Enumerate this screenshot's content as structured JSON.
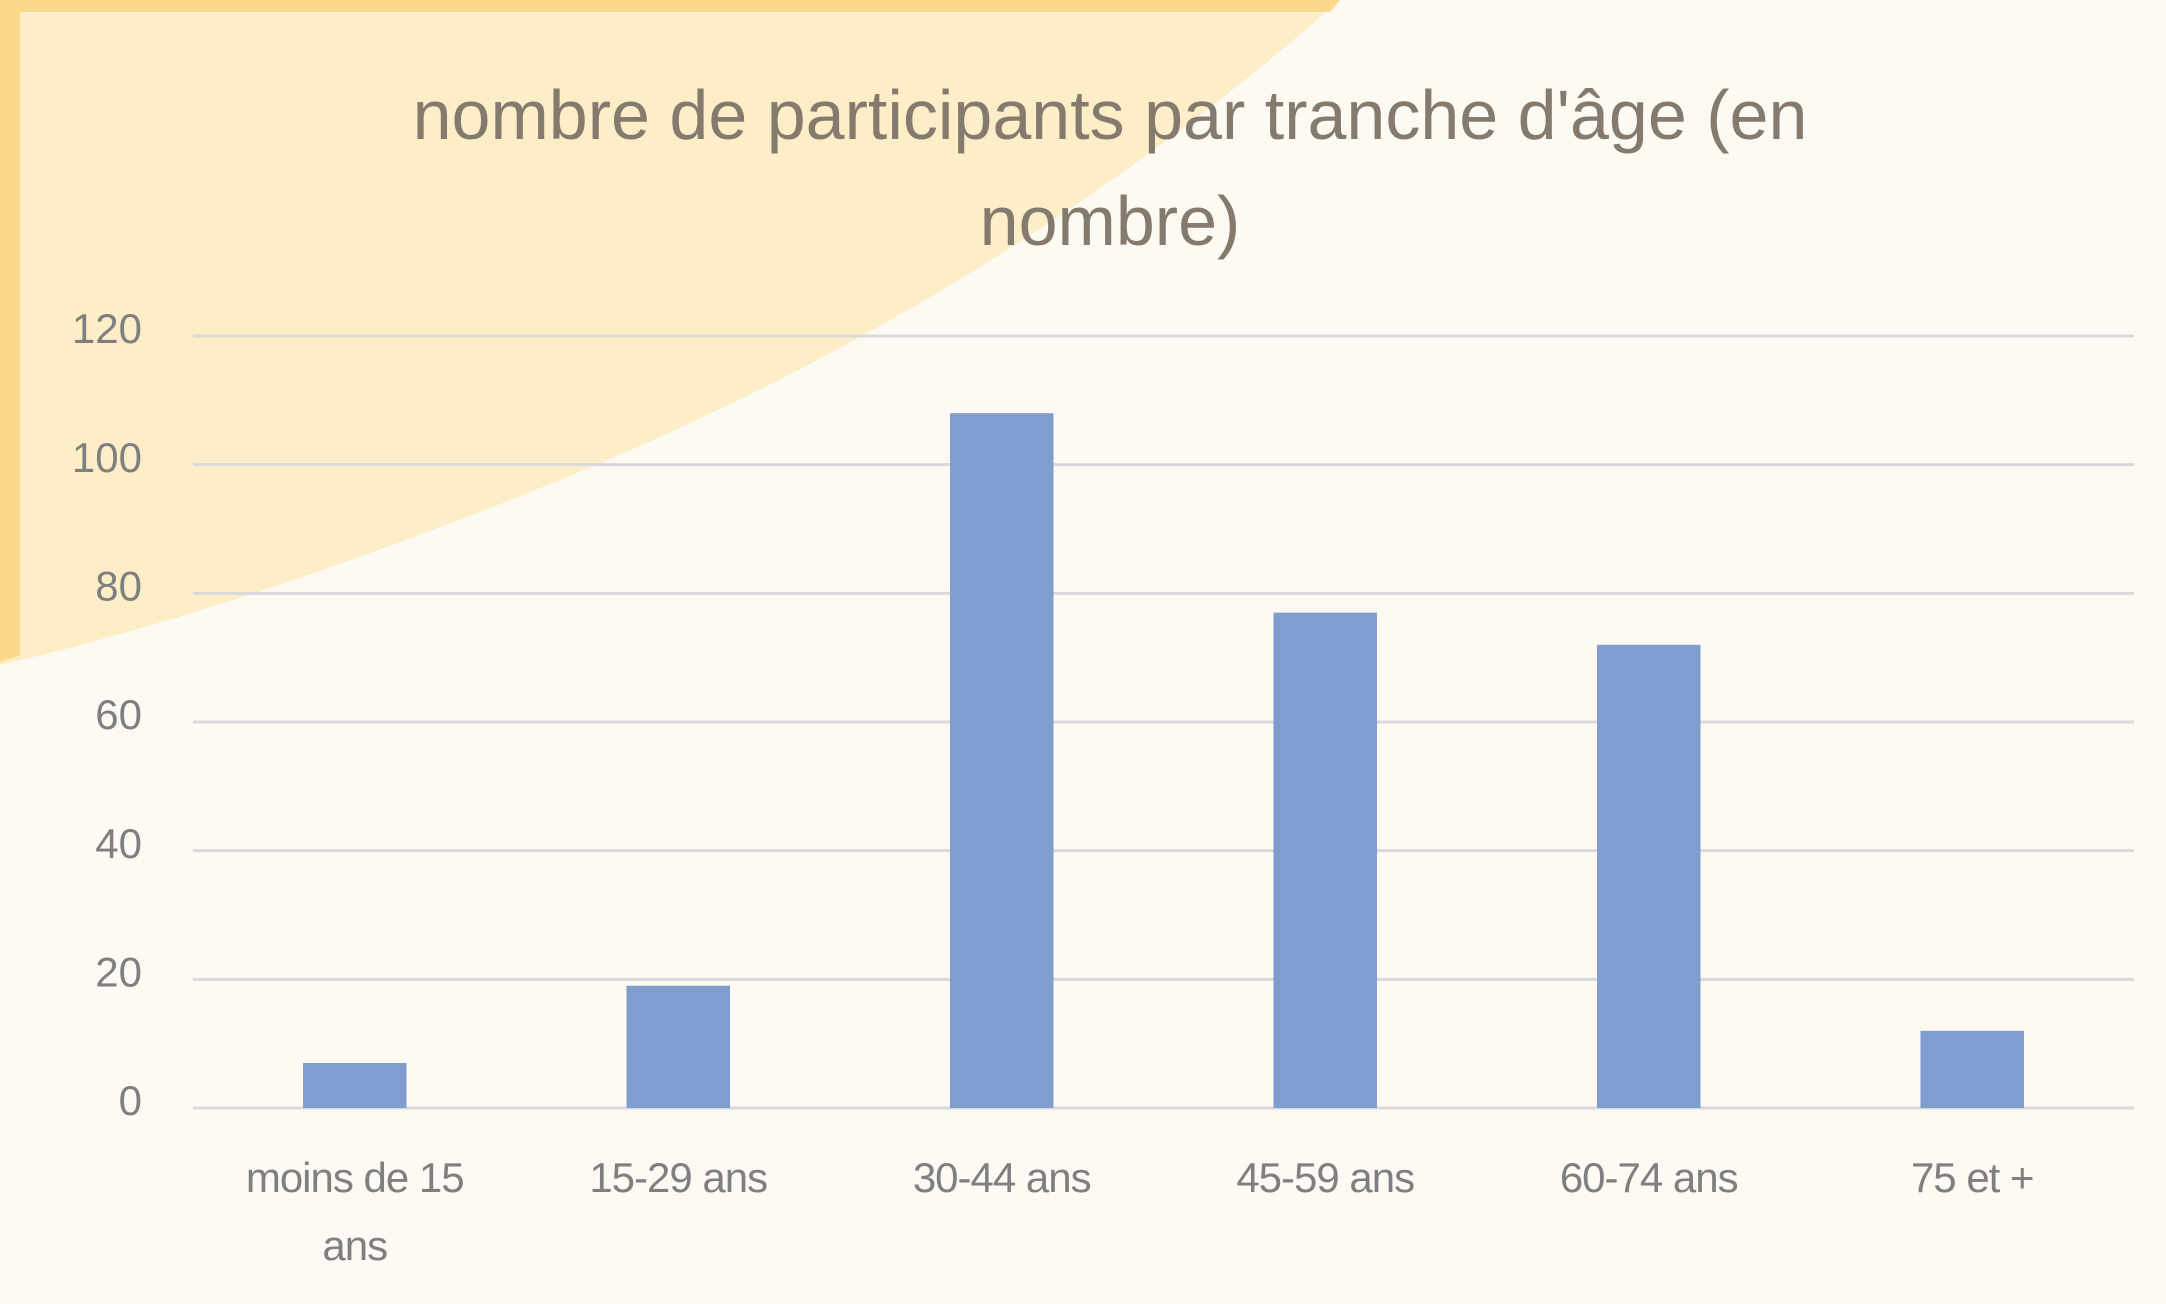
{
  "chart_data": {
    "type": "bar",
    "title": "nombre de participants par tranche d'âge (en nombre)",
    "categories": [
      "moins de 15 ans",
      "15-29 ans",
      "30-44 ans",
      "45-59 ans",
      "60-74 ans",
      "75 et +"
    ],
    "values": [
      7,
      19,
      108,
      77,
      72,
      12
    ],
    "color": "#7f9dcf",
    "ylim": [
      0,
      120
    ],
    "yticks": [
      0,
      20,
      40,
      60,
      80,
      100,
      120
    ],
    "grid": true
  }
}
